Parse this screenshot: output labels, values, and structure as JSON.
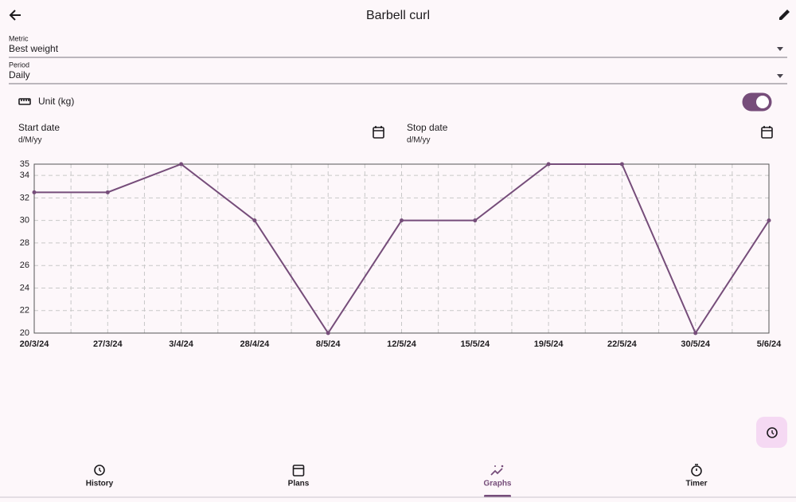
{
  "header": {
    "title": "Barbell curl"
  },
  "fields": [
    {
      "label": "Metric",
      "value": "Best weight"
    },
    {
      "label": "Period",
      "value": "Daily"
    }
  ],
  "unit": {
    "label": "Unit (kg)",
    "switch_on": true
  },
  "dates": [
    {
      "label": "Start date",
      "placeholder": "d/M/yy"
    },
    {
      "label": "Stop date",
      "placeholder": "d/M/yy"
    }
  ],
  "chart_data": {
    "type": "line",
    "categories": [
      "20/3/24",
      "27/3/24",
      "3/4/24",
      "28/4/24",
      "8/5/24",
      "12/5/24",
      "15/5/24",
      "19/5/24",
      "22/5/24",
      "30/5/24",
      "5/6/24"
    ],
    "series": [
      {
        "name": null,
        "color": "#764d7a",
        "values": [
          32.5,
          32.5,
          35,
          30,
          20,
          30,
          30,
          35,
          35,
          20,
          30
        ]
      }
    ],
    "ylim": [
      20,
      35
    ],
    "yticks": [
      20,
      22,
      24,
      26,
      28,
      30,
      32,
      34,
      35
    ],
    "grid": true
  },
  "nav": {
    "items": [
      "History",
      "Plans",
      "Graphs",
      "Timer"
    ],
    "selected": 2
  }
}
